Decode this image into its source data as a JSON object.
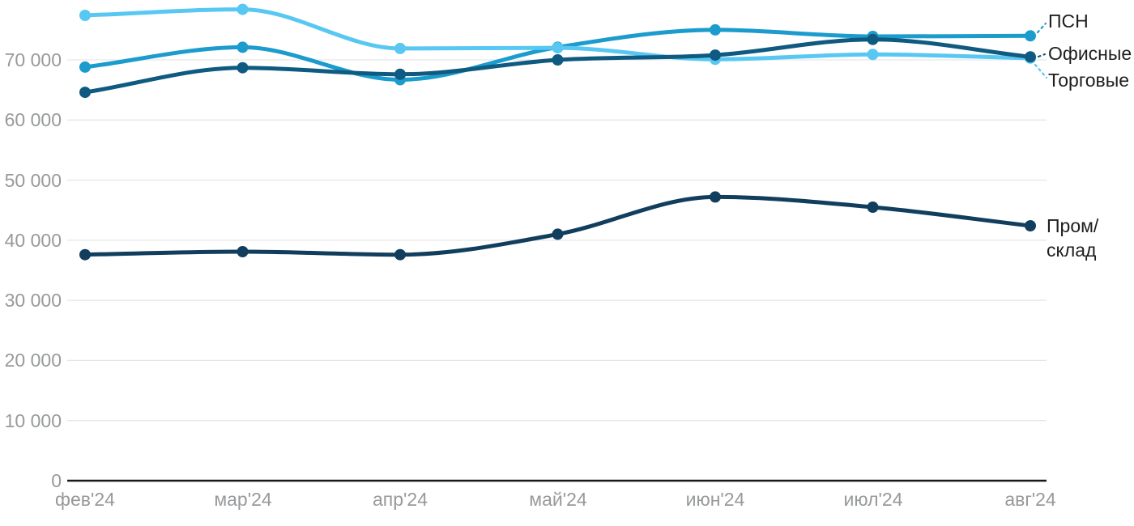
{
  "chart_data": {
    "type": "line",
    "title": "",
    "categories": [
      "фев'24",
      "мар'24",
      "апр'24",
      "май'24",
      "июн'24",
      "июл'24",
      "авг'24"
    ],
    "y_axis": {
      "min": 0,
      "max": 78500,
      "tick_step": 10000,
      "ticks": [
        {
          "value": 0,
          "label": "0"
        },
        {
          "value": 10000,
          "label": "10 000"
        },
        {
          "value": 20000,
          "label": "20 000"
        },
        {
          "value": 30000,
          "label": "30 000"
        },
        {
          "value": 40000,
          "label": "40 000"
        },
        {
          "value": 50000,
          "label": "50 000"
        },
        {
          "value": 60000,
          "label": "60 000"
        },
        {
          "value": 70000,
          "label": "70 000"
        }
      ]
    },
    "grid": true,
    "legend_position": "right-inline",
    "series": [
      {
        "id": "psn",
        "name": "ПСН",
        "color": "#1B9CCD",
        "values": [
          68800,
          72100,
          66700,
          72100,
          75000,
          73900,
          74000
        ]
      },
      {
        "id": "ofisnye",
        "name": "Офисные",
        "color": "#0E5A80",
        "values": [
          64600,
          68700,
          67600,
          70000,
          70800,
          73400,
          70500
        ]
      },
      {
        "id": "torgovye",
        "name": "Торговые",
        "color": "#58C8F3",
        "values": [
          77400,
          78400,
          71900,
          72000,
          70100,
          70900,
          70300
        ]
      },
      {
        "id": "prom-sklad",
        "name": "Пром/\nсклад",
        "color": "#123E5E",
        "values": [
          37600,
          38100,
          37600,
          41000,
          47200,
          45500,
          42400
        ]
      }
    ],
    "colors": {
      "grid_line": "#E6E6E6",
      "axis_line": "#17181A",
      "tick_text": "#97999B",
      "series_label_text": "#1E1E1E"
    }
  }
}
